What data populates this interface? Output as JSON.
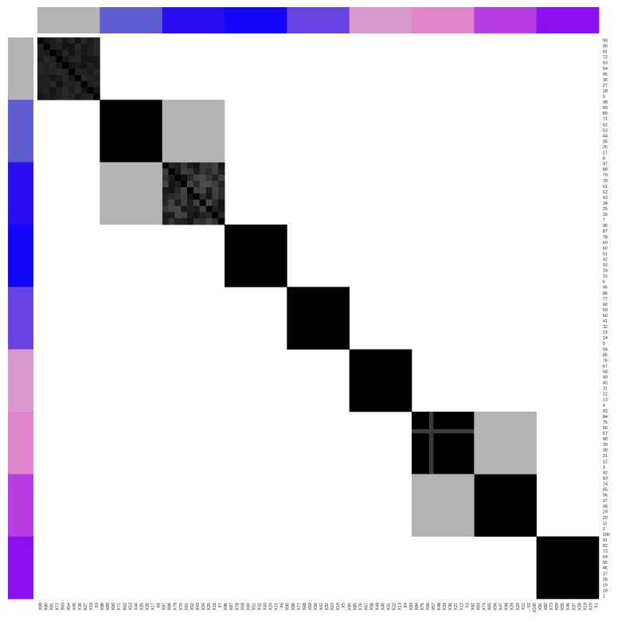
{
  "chart_data": {
    "type": "heatmap",
    "title": "",
    "clusters": [
      {
        "color": "#b3b3b3",
        "rows": [
          "99",
          "90",
          "81",
          "72",
          "63",
          "54",
          "45",
          "36",
          "27",
          "18",
          "9"
        ],
        "cols": [
          "X99",
          "X90",
          "X81",
          "X72",
          "X63",
          "X54",
          "X45",
          "X36",
          "X27",
          "X18",
          "X9"
        ],
        "fill": "#1c1c1c"
      },
      {
        "color": "#5e5ed0",
        "rows": [
          "98",
          "89",
          "80",
          "71",
          "62",
          "53",
          "44",
          "35",
          "26",
          "17"
        ],
        "cols": [
          "X98",
          "X89",
          "X80",
          "X71",
          "X62",
          "X53",
          "X44",
          "X35",
          "X26",
          "X17"
        ],
        "fill": "#000000"
      },
      {
        "color": "#2a0ff0",
        "rows": [
          "8",
          "97",
          "88",
          "79",
          "70",
          "61",
          "52",
          "43",
          "34",
          "25"
        ],
        "cols": [
          "X8",
          "X97",
          "X88",
          "X79",
          "X70",
          "X61",
          "X52",
          "X43",
          "X34",
          "X25"
        ],
        "fill": "#262626"
      },
      {
        "color": "#1405fb",
        "rows": [
          "16",
          "7",
          "96",
          "87",
          "78",
          "69",
          "60",
          "51",
          "42",
          "33"
        ],
        "cols": [
          "X16",
          "X7",
          "X96",
          "X87",
          "X78",
          "X69",
          "X60",
          "X51",
          "X42",
          "X33"
        ],
        "fill": "#000000"
      },
      {
        "color": "#6a43e3",
        "rows": [
          "24",
          "15",
          "6",
          "95",
          "86",
          "77",
          "68",
          "59",
          "50",
          "41"
        ],
        "cols": [
          "X24",
          "X15",
          "X6",
          "X95",
          "X86",
          "X77",
          "X68",
          "X59",
          "X50",
          "X41"
        ],
        "fill": "#000000"
      },
      {
        "color": "#d799cc",
        "rows": [
          "32",
          "23",
          "14",
          "5",
          "94",
          "85",
          "76",
          "67",
          "58",
          "49"
        ],
        "cols": [
          "X32",
          "X23",
          "X14",
          "X5",
          "X94",
          "X85",
          "X76",
          "X67",
          "X58",
          "X49"
        ],
        "fill": "#000000"
      },
      {
        "color": "#e184cc",
        "rows": [
          "40",
          "31",
          "22",
          "13",
          "4",
          "93",
          "84",
          "75",
          "66",
          "57"
        ],
        "cols": [
          "X40",
          "X31",
          "X22",
          "X13",
          "X4",
          "X93",
          "X84",
          "X75",
          "X66",
          "X57"
        ],
        "fill": "#000000"
      },
      {
        "color": "#b53fe3",
        "rows": [
          "48",
          "39",
          "30",
          "21",
          "12",
          "3",
          "92",
          "83",
          "74",
          "65"
        ],
        "cols": [
          "X48",
          "X39",
          "X30",
          "X21",
          "X12",
          "X3",
          "X92",
          "X83",
          "X74",
          "X65"
        ],
        "fill": "#000000"
      },
      {
        "color": "#8e0ff0",
        "rows": [
          "56",
          "47",
          "38",
          "29",
          "20",
          "11",
          "2",
          "100",
          "91",
          "82",
          "73",
          "64",
          "55",
          "46",
          "37",
          "28",
          "19",
          "10",
          "1"
        ],
        "cols": [
          "X56",
          "X47",
          "X38",
          "X29",
          "X20",
          "X11",
          "X2",
          "X100",
          "X91",
          "X82",
          "X73",
          "X64",
          "X55",
          "X46",
          "X37",
          "X28",
          "X19",
          "X10",
          "X1"
        ],
        "fill": "#000000"
      }
    ],
    "off_diagonal_blocks": [
      {
        "a": 2,
        "b": 3,
        "fill": "#b3b3b3"
      },
      {
        "a": 7,
        "b": 8,
        "fill": "#b3b3b3"
      }
    ],
    "row_labels": [
      "99",
      "90",
      "81",
      "72",
      "63",
      "54",
      "45",
      "36",
      "27",
      "18",
      "9",
      "98",
      "89",
      "80",
      "71",
      "62",
      "53",
      "44",
      "35",
      "26",
      "17",
      "8",
      "97",
      "88",
      "79",
      "70",
      "61",
      "52",
      "43",
      "34",
      "25",
      "16",
      "7",
      "96",
      "87",
      "78",
      "69",
      "60",
      "51",
      "42",
      "33",
      "24",
      "15",
      "6",
      "95",
      "86",
      "77",
      "68",
      "59",
      "50",
      "41",
      "32",
      "23",
      "14",
      "5",
      "94",
      "85",
      "76",
      "67",
      "58",
      "49",
      "40",
      "31",
      "22",
      "13",
      "4",
      "93",
      "84",
      "75",
      "66",
      "57",
      "48",
      "39",
      "30",
      "21",
      "12",
      "3",
      "92",
      "83",
      "74",
      "65",
      "56",
      "47",
      "38",
      "29",
      "20",
      "11",
      "2",
      "100",
      "91",
      "82",
      "73",
      "64",
      "55",
      "46",
      "37",
      "28",
      "19",
      "10",
      "1"
    ],
    "col_labels": [
      "X99",
      "X90",
      "X81",
      "X72",
      "X63",
      "X54",
      "X45",
      "X36",
      "X27",
      "X18",
      "X9",
      "X98",
      "X89",
      "X80",
      "X71",
      "X62",
      "X53",
      "X44",
      "X35",
      "X26",
      "X17",
      "X8",
      "X97",
      "X88",
      "X79",
      "X70",
      "X61",
      "X52",
      "X43",
      "X34",
      "X25",
      "X16",
      "X7",
      "X96",
      "X87",
      "X78",
      "X69",
      "X60",
      "X51",
      "X42",
      "X33",
      "X24",
      "X15",
      "X6",
      "X95",
      "X86",
      "X77",
      "X68",
      "X59",
      "X50",
      "X41",
      "X32",
      "X23",
      "X14",
      "X5",
      "X94",
      "X85",
      "X76",
      "X67",
      "X58",
      "X49",
      "X40",
      "X31",
      "X22",
      "X13",
      "X4",
      "X93",
      "X84",
      "X75",
      "X66",
      "X57",
      "X48",
      "X39",
      "X30",
      "X21",
      "X12",
      "X3",
      "X92",
      "X83",
      "X74",
      "X65",
      "X56",
      "X47",
      "X38",
      "X29",
      "X20",
      "X11",
      "X2",
      "X100",
      "X91",
      "X82",
      "X73",
      "X64",
      "X55",
      "X46",
      "X37",
      "X28",
      "X19",
      "X10",
      "X1"
    ],
    "background": "#ffffff",
    "legend": "none",
    "grid": false
  }
}
